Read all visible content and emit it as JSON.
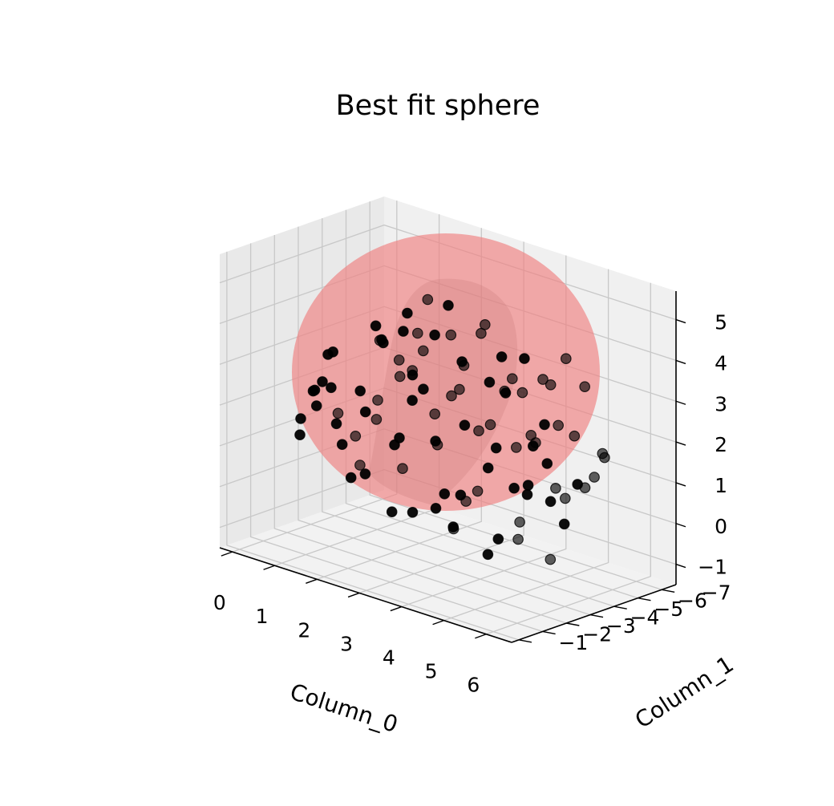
{
  "chart_data": {
    "type": "scatter",
    "projection": "3d",
    "title": "Best fit sphere",
    "xlabel": "Column_0",
    "ylabel": "Column_1",
    "zlabel": "",
    "x_ticks": [
      "0",
      "1",
      "2",
      "3",
      "4",
      "5",
      "6"
    ],
    "y_ticks": [
      "−7",
      "−6",
      "−5",
      "−4",
      "−3",
      "−2",
      "−1"
    ],
    "z_ticks": [
      "−1",
      "0",
      "1",
      "2",
      "3",
      "4",
      "5"
    ],
    "xlim": [
      -0.3,
      6.6
    ],
    "ylim": [
      -7.6,
      -0.7
    ],
    "zlim": [
      -1.5,
      5.7
    ],
    "grid": true,
    "sphere": {
      "center": [
        3.1,
        -4.1,
        2.0
      ],
      "radius": 3.3,
      "color": "#f08080",
      "opacity": 0.65
    },
    "point_color": "#000000",
    "series": [
      {
        "points": [
          [
            0.2,
            -3.8,
            1.9
          ],
          [
            0.3,
            -4.6,
            1.2
          ],
          [
            0.5,
            -3.2,
            2.1
          ],
          [
            0.6,
            -4.8,
            0.7
          ],
          [
            0.8,
            -3.5,
            3.1
          ],
          [
            0.9,
            -5.2,
            1.6
          ],
          [
            1.0,
            -2.7,
            2.6
          ],
          [
            1.1,
            -4.1,
            0.3
          ],
          [
            1.2,
            -5.6,
            2.2
          ],
          [
            1.3,
            -3.0,
            1.1
          ],
          [
            1.4,
            -4.4,
            3.4
          ],
          [
            1.5,
            -2.4,
            1.8
          ],
          [
            1.6,
            -5.0,
            0.2
          ],
          [
            1.7,
            -3.7,
            4.0
          ],
          [
            1.8,
            -6.0,
            1.4
          ],
          [
            1.9,
            -2.9,
            0.6
          ],
          [
            2.0,
            -4.7,
            2.8
          ],
          [
            2.1,
            -3.3,
            3.8
          ],
          [
            2.2,
            -5.4,
            0.9
          ],
          [
            2.3,
            -2.2,
            2.4
          ],
          [
            2.4,
            -4.0,
            -0.4
          ],
          [
            2.5,
            -3.6,
            4.6
          ],
          [
            2.6,
            -5.8,
            2.9
          ],
          [
            2.7,
            -2.6,
            0.0
          ],
          [
            2.8,
            -4.9,
            3.9
          ],
          [
            2.9,
            -3.1,
            2.7
          ],
          [
            3.0,
            -6.2,
            1.5
          ],
          [
            3.1,
            -2.0,
            1.9
          ],
          [
            3.2,
            -4.3,
            -0.6
          ],
          [
            3.3,
            -3.9,
            5.0
          ],
          [
            3.4,
            -5.1,
            4.1
          ],
          [
            3.5,
            -2.5,
            3.3
          ],
          [
            3.6,
            -4.6,
            0.4
          ],
          [
            3.7,
            -3.4,
            -0.2
          ],
          [
            3.8,
            -5.7,
            3.0
          ],
          [
            3.9,
            -2.3,
            2.2
          ],
          [
            4.0,
            -4.2,
            4.7
          ],
          [
            4.1,
            -3.0,
            0.8
          ],
          [
            4.2,
            -5.3,
            -0.3
          ],
          [
            4.3,
            -2.7,
            4.2
          ],
          [
            4.4,
            -4.8,
            1.7
          ],
          [
            4.5,
            -3.5,
            3.6
          ],
          [
            4.6,
            -6.1,
            0.5
          ],
          [
            4.7,
            -2.1,
            2.9
          ],
          [
            4.8,
            -4.0,
            1.0
          ],
          [
            4.9,
            -3.3,
            4.4
          ],
          [
            5.0,
            -5.5,
            2.3
          ],
          [
            5.1,
            -2.8,
            0.1
          ],
          [
            5.2,
            -4.5,
            3.7
          ],
          [
            5.3,
            -3.7,
            1.3
          ],
          [
            5.4,
            -5.9,
            3.3
          ],
          [
            5.5,
            -2.4,
            3.9
          ],
          [
            5.6,
            -4.1,
            -0.5
          ],
          [
            5.7,
            -3.2,
            2.5
          ],
          [
            5.8,
            -5.2,
            1.1
          ],
          [
            5.9,
            -2.6,
            1.5
          ],
          [
            6.0,
            -4.4,
            2.6
          ],
          [
            6.1,
            -3.8,
            0.6
          ],
          [
            0.4,
            -4.0,
            2.8
          ],
          [
            0.7,
            -5.5,
            1.0
          ],
          [
            1.0,
            -3.9,
            0.0
          ],
          [
            1.3,
            -6.4,
            2.7
          ],
          [
            1.6,
            -2.0,
            2.8
          ],
          [
            1.9,
            -5.1,
            3.6
          ],
          [
            2.2,
            -3.8,
            1.4
          ],
          [
            2.5,
            -6.6,
            1.1
          ],
          [
            2.8,
            -2.9,
            4.4
          ],
          [
            3.1,
            -5.0,
            -0.1
          ],
          [
            3.4,
            -3.2,
            0.2
          ],
          [
            3.7,
            -6.3,
            2.5
          ],
          [
            4.0,
            -2.5,
            0.9
          ],
          [
            4.3,
            -5.6,
            1.8
          ],
          [
            4.6,
            -3.6,
            2.0
          ],
          [
            4.9,
            -6.0,
            3.8
          ],
          [
            5.2,
            -2.2,
            2.0
          ],
          [
            5.5,
            -4.9,
            0.8
          ],
          [
            5.8,
            -3.5,
            3.0
          ],
          [
            6.1,
            -5.4,
            2.0
          ],
          [
            0.3,
            -3.0,
            1.0
          ],
          [
            0.9,
            -6.1,
            2.4
          ],
          [
            1.5,
            -3.4,
            2.4
          ],
          [
            2.1,
            -6.5,
            2.0
          ],
          [
            2.7,
            -4.1,
            4.9
          ],
          [
            3.3,
            -2.4,
            3.6
          ],
          [
            3.9,
            -6.5,
            1.3
          ],
          [
            4.5,
            -4.7,
            -0.5
          ],
          [
            5.1,
            -3.9,
            4.3
          ],
          [
            5.7,
            -6.2,
            1.6
          ],
          [
            6.2,
            -2.9,
            2.3
          ],
          [
            0.6,
            -2.5,
            1.6
          ],
          [
            1.2,
            -2.1,
            2.2
          ],
          [
            1.8,
            -6.7,
            1.7
          ],
          [
            2.4,
            -2.7,
            4.1
          ],
          [
            3.0,
            -6.8,
            2.2
          ],
          [
            3.6,
            -2.8,
            4.6
          ],
          [
            4.2,
            -6.6,
            2.8
          ],
          [
            4.8,
            -2.9,
            -0.4
          ],
          [
            5.4,
            -6.3,
            1.0
          ],
          [
            6.0,
            -3.4,
            1.2
          ],
          [
            6.3,
            -4.0,
            1.6
          ]
        ]
      }
    ]
  }
}
